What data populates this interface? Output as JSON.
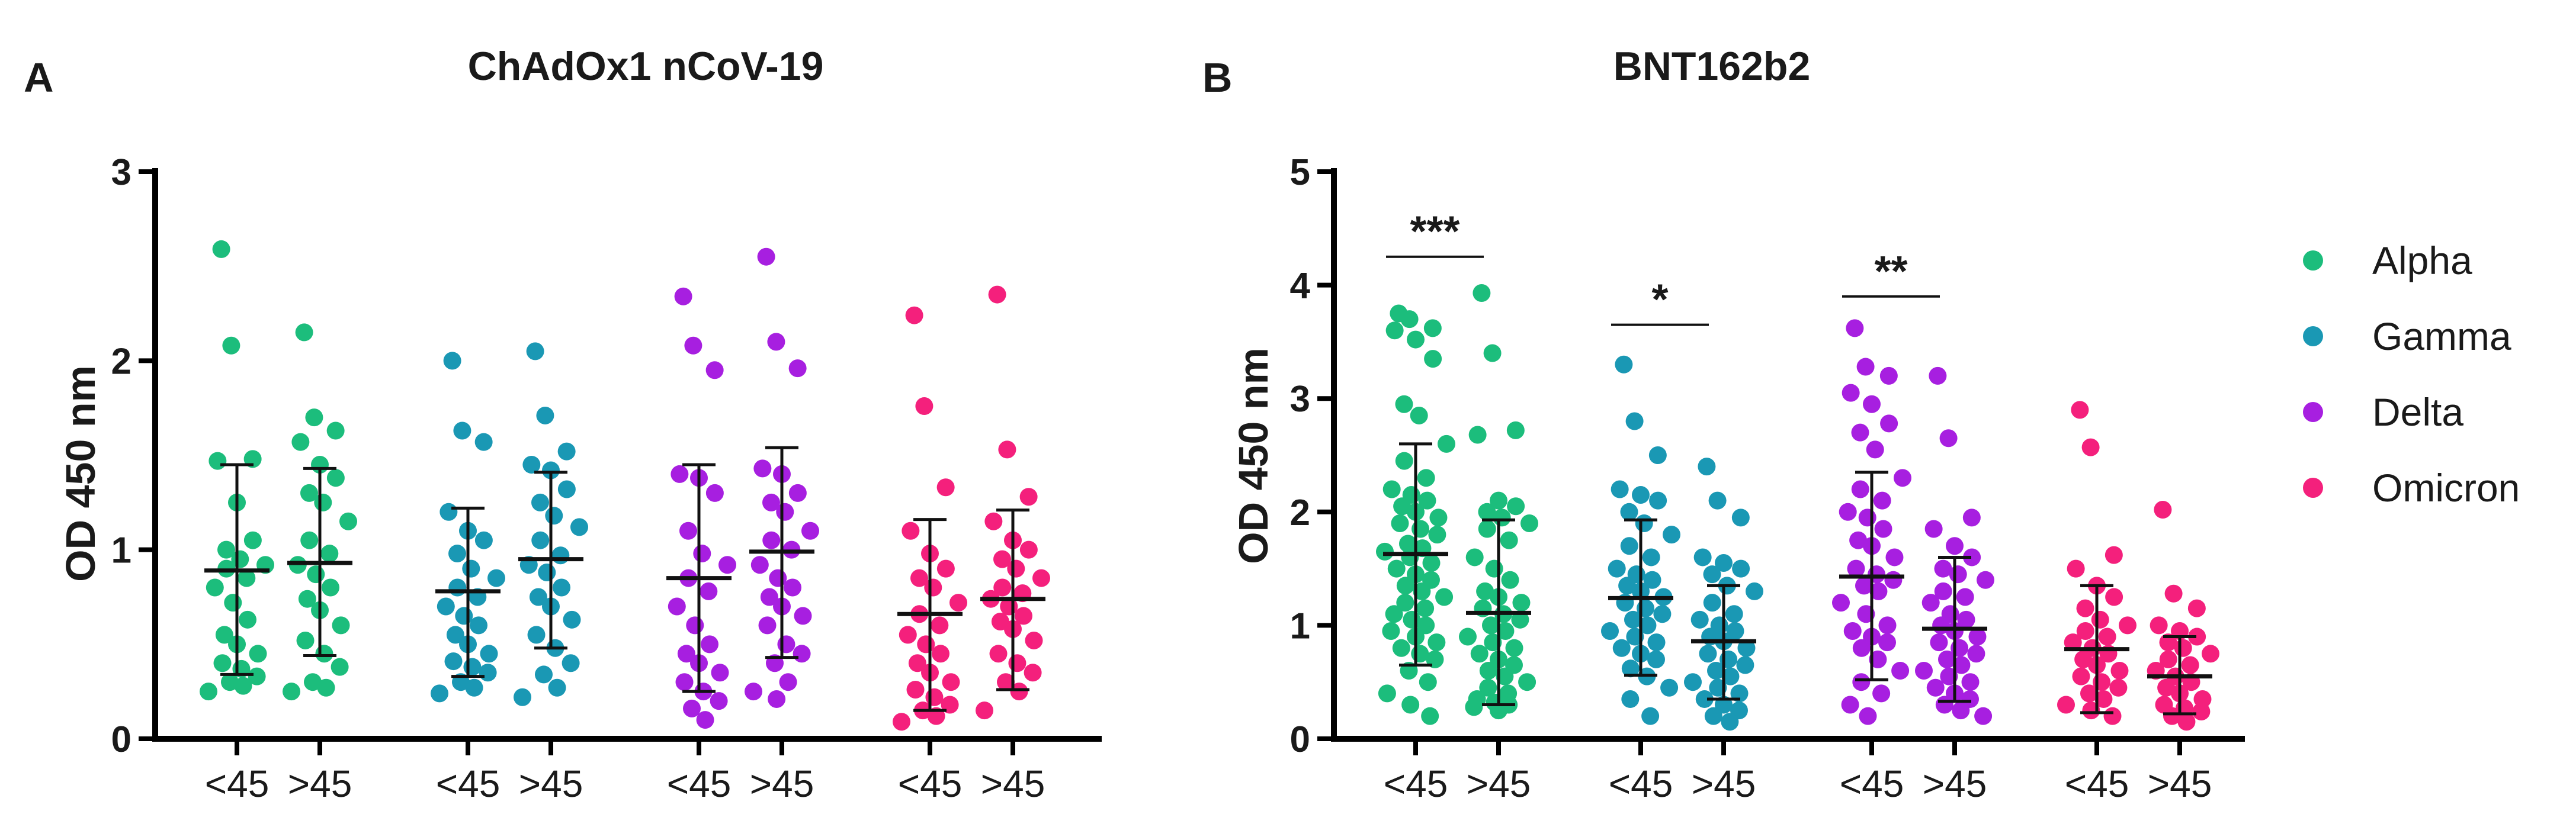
{
  "chart_data": [
    {
      "panel": "A",
      "type": "scatter",
      "title": "ChAdOx1 nCoV-19",
      "ylabel": "OD 450 nm",
      "xlabel": "",
      "ylim": [
        0,
        3
      ],
      "yticks": [
        0,
        1,
        2,
        3
      ],
      "categories": [
        "<45",
        ">45",
        "<45",
        ">45",
        "<45",
        ">45",
        "<45",
        ">45"
      ],
      "groups": [
        {
          "variant": "Alpha",
          "age": "<45",
          "mean": 0.89,
          "sd_low": 0.34,
          "sd_high": 1.45,
          "values": [
            2.59,
            2.08,
            1.48,
            1.47,
            1.25,
            1.05,
            1.0,
            0.95,
            0.92,
            0.9,
            0.85,
            0.8,
            0.72,
            0.63,
            0.55,
            0.5,
            0.45,
            0.4,
            0.37,
            0.33,
            0.3,
            0.28,
            0.25
          ]
        },
        {
          "variant": "Alpha",
          "age": ">45",
          "mean": 0.93,
          "sd_low": 0.44,
          "sd_high": 1.43,
          "values": [
            2.15,
            1.7,
            1.63,
            1.57,
            1.45,
            1.38,
            1.3,
            1.25,
            1.15,
            1.05,
            0.98,
            0.92,
            0.87,
            0.8,
            0.74,
            0.68,
            0.6,
            0.52,
            0.45,
            0.38,
            0.3,
            0.27,
            0.25
          ]
        },
        {
          "variant": "Gamma",
          "age": "<45",
          "mean": 0.78,
          "sd_low": 0.33,
          "sd_high": 1.22,
          "values": [
            2.0,
            1.63,
            1.57,
            1.2,
            1.1,
            1.05,
            0.98,
            0.9,
            0.85,
            0.8,
            0.75,
            0.7,
            0.65,
            0.6,
            0.55,
            0.5,
            0.45,
            0.41,
            0.38,
            0.35,
            0.3,
            0.27,
            0.24
          ]
        },
        {
          "variant": "Gamma",
          "age": ">45",
          "mean": 0.95,
          "sd_low": 0.48,
          "sd_high": 1.41,
          "values": [
            2.05,
            1.71,
            1.52,
            1.45,
            1.42,
            1.32,
            1.25,
            1.18,
            1.12,
            1.05,
            0.97,
            0.92,
            0.88,
            0.8,
            0.75,
            0.7,
            0.63,
            0.55,
            0.48,
            0.4,
            0.34,
            0.27,
            0.22
          ]
        },
        {
          "variant": "Delta",
          "age": "<45",
          "mean": 0.85,
          "sd_low": 0.25,
          "sd_high": 1.45,
          "values": [
            2.34,
            2.08,
            1.95,
            1.4,
            1.38,
            1.3,
            1.1,
            0.98,
            0.92,
            0.85,
            0.78,
            0.7,
            0.6,
            0.5,
            0.45,
            0.4,
            0.35,
            0.3,
            0.25,
            0.2,
            0.16,
            0.1
          ]
        },
        {
          "variant": "Delta",
          "age": ">45",
          "mean": 0.99,
          "sd_low": 0.43,
          "sd_high": 1.54,
          "values": [
            2.55,
            2.1,
            1.96,
            1.43,
            1.4,
            1.3,
            1.25,
            1.2,
            1.1,
            1.05,
            1.0,
            0.92,
            0.85,
            0.8,
            0.75,
            0.7,
            0.65,
            0.6,
            0.5,
            0.45,
            0.4,
            0.3,
            0.25,
            0.21
          ]
        },
        {
          "variant": "Omicron",
          "age": "<45",
          "mean": 0.66,
          "sd_low": 0.15,
          "sd_high": 1.16,
          "values": [
            2.24,
            1.76,
            1.33,
            1.1,
            0.98,
            0.9,
            0.85,
            0.8,
            0.72,
            0.66,
            0.6,
            0.55,
            0.5,
            0.45,
            0.4,
            0.35,
            0.3,
            0.26,
            0.22,
            0.18,
            0.15,
            0.12,
            0.09
          ]
        },
        {
          "variant": "Omicron",
          "age": ">45",
          "mean": 0.74,
          "sd_low": 0.26,
          "sd_high": 1.21,
          "values": [
            2.35,
            1.53,
            1.28,
            1.15,
            1.05,
            1.0,
            0.95,
            0.9,
            0.85,
            0.8,
            0.77,
            0.74,
            0.7,
            0.65,
            0.62,
            0.58,
            0.52,
            0.45,
            0.4,
            0.35,
            0.3,
            0.25,
            0.15
          ]
        }
      ],
      "significance": []
    },
    {
      "panel": "B",
      "type": "scatter",
      "title": "BNT162b2",
      "ylabel": "OD 450 nm",
      "xlabel": "",
      "ylim": [
        0,
        5
      ],
      "yticks": [
        0,
        1,
        2,
        3,
        4,
        5
      ],
      "categories": [
        "<45",
        ">45",
        "<45",
        ">45",
        "<45",
        ">45",
        "<45",
        ">45"
      ],
      "groups": [
        {
          "variant": "Alpha",
          "age": "<45",
          "mean": 1.63,
          "sd_low": 0.65,
          "sd_high": 2.6,
          "values": [
            3.75,
            3.7,
            3.62,
            3.6,
            3.52,
            3.35,
            2.95,
            2.85,
            2.6,
            2.45,
            2.3,
            2.2,
            2.15,
            2.1,
            2.05,
            2.0,
            1.95,
            1.9,
            1.85,
            1.8,
            1.72,
            1.68,
            1.65,
            1.6,
            1.55,
            1.5,
            1.45,
            1.4,
            1.35,
            1.3,
            1.25,
            1.2,
            1.15,
            1.1,
            1.05,
            1.0,
            0.95,
            0.9,
            0.85,
            0.8,
            0.75,
            0.7,
            0.6,
            0.5,
            0.4,
            0.3,
            0.2
          ]
        },
        {
          "variant": "Alpha",
          "age": ">45",
          "mean": 1.11,
          "sd_low": 0.3,
          "sd_high": 1.93,
          "values": [
            3.93,
            3.4,
            2.72,
            2.68,
            2.1,
            2.05,
            2.0,
            1.95,
            1.9,
            1.85,
            1.75,
            1.6,
            1.5,
            1.4,
            1.3,
            1.25,
            1.2,
            1.15,
            1.1,
            1.05,
            1.0,
            0.95,
            0.9,
            0.85,
            0.8,
            0.75,
            0.7,
            0.65,
            0.6,
            0.55,
            0.5,
            0.45,
            0.4,
            0.35,
            0.32,
            0.3,
            0.28,
            0.25
          ]
        },
        {
          "variant": "Gamma",
          "age": "<45",
          "mean": 1.24,
          "sd_low": 0.56,
          "sd_high": 1.93,
          "values": [
            3.3,
            2.8,
            2.5,
            2.2,
            2.15,
            2.1,
            2.0,
            1.9,
            1.8,
            1.7,
            1.6,
            1.5,
            1.45,
            1.4,
            1.35,
            1.3,
            1.25,
            1.2,
            1.15,
            1.1,
            1.05,
            1.0,
            0.95,
            0.9,
            0.85,
            0.8,
            0.75,
            0.7,
            0.62,
            0.55,
            0.45,
            0.35,
            0.2
          ]
        },
        {
          "variant": "Gamma",
          "age": ">45",
          "mean": 0.86,
          "sd_low": 0.35,
          "sd_high": 1.35,
          "values": [
            2.4,
            2.1,
            1.95,
            1.6,
            1.55,
            1.5,
            1.45,
            1.35,
            1.3,
            1.2,
            1.1,
            1.05,
            1.0,
            0.95,
            0.9,
            0.86,
            0.8,
            0.75,
            0.7,
            0.65,
            0.6,
            0.55,
            0.5,
            0.45,
            0.4,
            0.35,
            0.3,
            0.25,
            0.2,
            0.15
          ]
        },
        {
          "variant": "Delta",
          "age": "<45",
          "mean": 1.43,
          "sd_low": 0.52,
          "sd_high": 2.35,
          "values": [
            3.62,
            3.28,
            3.2,
            3.05,
            2.95,
            2.78,
            2.7,
            2.55,
            2.3,
            2.2,
            2.1,
            2.0,
            1.95,
            1.85,
            1.75,
            1.7,
            1.6,
            1.5,
            1.45,
            1.4,
            1.35,
            1.3,
            1.2,
            1.1,
            1.0,
            0.95,
            0.9,
            0.85,
            0.8,
            0.7,
            0.6,
            0.5,
            0.4,
            0.3,
            0.2
          ]
        },
        {
          "variant": "Delta",
          "age": ">45",
          "mean": 0.97,
          "sd_low": 0.33,
          "sd_high": 1.6,
          "values": [
            3.2,
            2.65,
            1.95,
            1.85,
            1.7,
            1.6,
            1.5,
            1.45,
            1.4,
            1.3,
            1.25,
            1.2,
            1.1,
            1.05,
            1.0,
            0.95,
            0.9,
            0.85,
            0.8,
            0.75,
            0.7,
            0.65,
            0.6,
            0.55,
            0.5,
            0.45,
            0.4,
            0.35,
            0.3,
            0.25,
            0.2
          ]
        },
        {
          "variant": "Omicron",
          "age": "<45",
          "mean": 0.79,
          "sd_low": 0.23,
          "sd_high": 1.35,
          "values": [
            2.9,
            2.57,
            1.62,
            1.5,
            1.35,
            1.25,
            1.15,
            1.05,
            1.0,
            0.95,
            0.9,
            0.85,
            0.8,
            0.75,
            0.7,
            0.65,
            0.6,
            0.55,
            0.5,
            0.45,
            0.4,
            0.35,
            0.3,
            0.25,
            0.2
          ]
        },
        {
          "variant": "Omicron",
          "age": ">45",
          "mean": 0.55,
          "sd_low": 0.22,
          "sd_high": 0.9,
          "values": [
            2.02,
            1.28,
            1.15,
            1.0,
            0.95,
            0.9,
            0.85,
            0.8,
            0.75,
            0.7,
            0.65,
            0.6,
            0.55,
            0.5,
            0.45,
            0.4,
            0.35,
            0.3,
            0.27,
            0.24,
            0.2,
            0.15
          ]
        }
      ],
      "significance": [
        {
          "label": "***",
          "from_group": 0,
          "to_group": 1,
          "y": 4.25
        },
        {
          "label": "*",
          "from_group": 2,
          "to_group": 3,
          "y": 3.65
        },
        {
          "label": "**",
          "from_group": 4,
          "to_group": 5,
          "y": 3.9
        }
      ]
    }
  ],
  "legend": {
    "items": [
      {
        "label": "Alpha",
        "color": "#1cbd7c"
      },
      {
        "label": "Gamma",
        "color": "#1a98b4"
      },
      {
        "label": "Delta",
        "color": "#a71fe0"
      },
      {
        "label": "Omicron",
        "color": "#f4207c"
      }
    ]
  },
  "colors": {
    "Alpha": "#1cbd7c",
    "Gamma": "#1a98b4",
    "Delta": "#a71fe0",
    "Omicron": "#f4207c",
    "axis": "#000000"
  }
}
